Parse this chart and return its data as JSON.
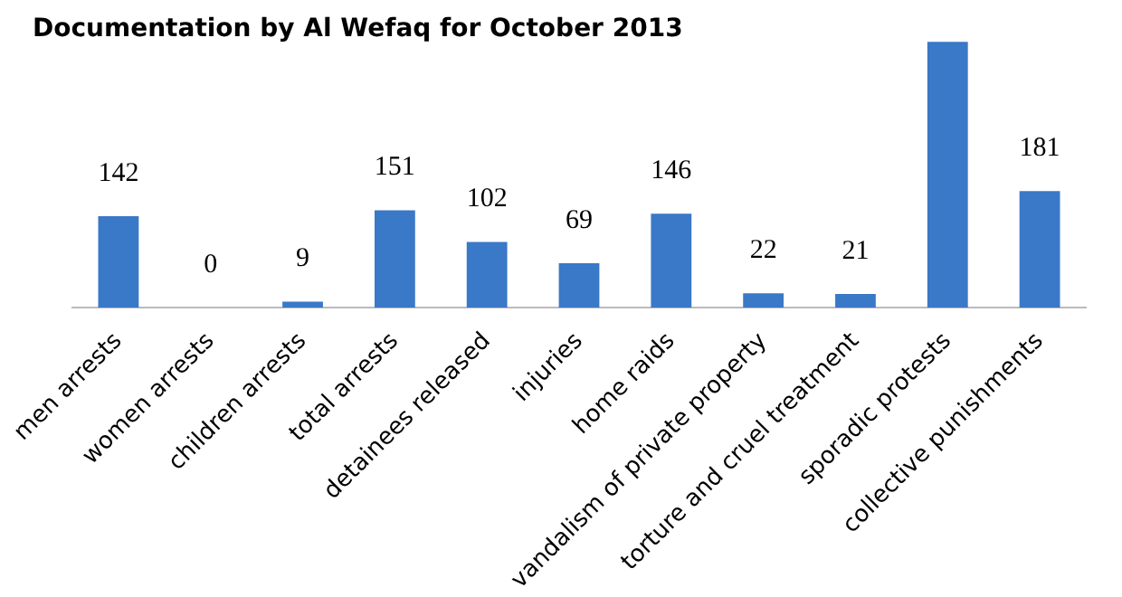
{
  "chart_data": {
    "type": "bar",
    "title": "Documentation by Al Wefaq for October 2013",
    "categories": [
      "men arrests",
      "women arrests",
      "children arrests",
      "total arrests",
      "detainees released",
      "injuries",
      "home raids",
      "vandalism of private property",
      "torture and cruel treatment",
      "sporadic protests",
      "collective punishments"
    ],
    "values": [
      142,
      0,
      9,
      151,
      102,
      69,
      146,
      22,
      21,
      413,
      181
    ],
    "value_labels": [
      "142",
      "0",
      "9",
      "151",
      "102",
      "69",
      "146",
      "22",
      "21",
      null,
      "181"
    ],
    "color": "#3a78c8"
  }
}
